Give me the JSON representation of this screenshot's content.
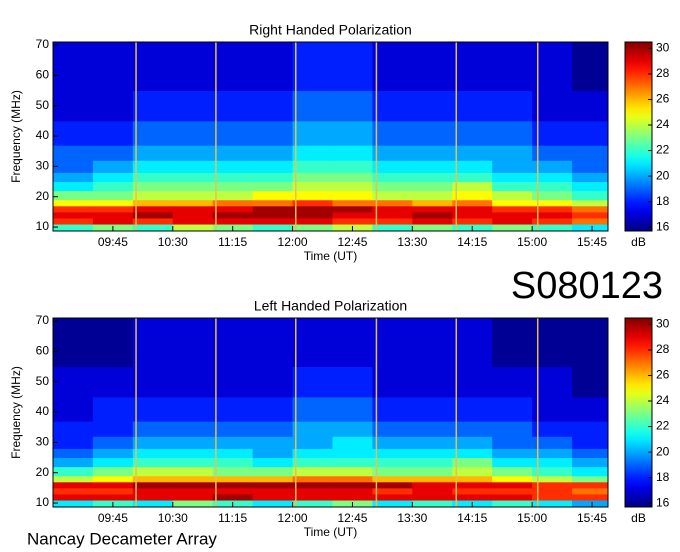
{
  "chart_data": [
    {
      "type": "heatmap",
      "title": "Right Handed Polarization",
      "x_label": "Time (UT)",
      "y_label": "Frequency (MHz)",
      "colorbar_label": "dB",
      "colormap": "jet",
      "xlim": [
        9.0,
        15.95
      ],
      "ylim": [
        8.7,
        71
      ],
      "xticks": [
        {
          "value": 9.75,
          "label": "09:45"
        },
        {
          "value": 10.5,
          "label": "10:30"
        },
        {
          "value": 11.25,
          "label": "11:15"
        },
        {
          "value": 12.0,
          "label": "12:00"
        },
        {
          "value": 12.75,
          "label": "12:45"
        },
        {
          "value": 13.5,
          "label": "13:30"
        },
        {
          "value": 14.25,
          "label": "14:15"
        },
        {
          "value": 15.0,
          "label": "15:00"
        },
        {
          "value": 15.75,
          "label": "15:45"
        }
      ],
      "yticks": [
        10,
        20,
        30,
        40,
        50,
        60,
        70
      ],
      "clim": [
        15.7,
        30.5
      ],
      "cticks": [
        16,
        18,
        20,
        22,
        24,
        26,
        28,
        30
      ],
      "x_edges": [
        9.0,
        9.5,
        10.0,
        10.5,
        11.0,
        11.5,
        12.0,
        12.5,
        13.0,
        13.5,
        14.0,
        14.5,
        15.0,
        15.5,
        15.95
      ],
      "y_edges": [
        8.7,
        11,
        13,
        15,
        17,
        19,
        22,
        25,
        28,
        32,
        37,
        45,
        55,
        71
      ],
      "z": [
        [
          22,
          23,
          22,
          24,
          23,
          22,
          23,
          24,
          22,
          23,
          22,
          23,
          22,
          21
        ],
        [
          28,
          29,
          28,
          29,
          29,
          29,
          29,
          28,
          28,
          29,
          28,
          29,
          28,
          27
        ],
        [
          29,
          29,
          30,
          29,
          30,
          30,
          30,
          29,
          29,
          30,
          29,
          29,
          29,
          28
        ],
        [
          28,
          28,
          29,
          29,
          29,
          30,
          30,
          30,
          29,
          29,
          29,
          28,
          28,
          27
        ],
        [
          25,
          25,
          26,
          26,
          27,
          27,
          28,
          27,
          27,
          26,
          27,
          25,
          25,
          24
        ],
        [
          23,
          23,
          24,
          24,
          24,
          25,
          25,
          25,
          24,
          24,
          25,
          24,
          23,
          22
        ],
        [
          21,
          22,
          23,
          23,
          23,
          23,
          24,
          24,
          23,
          23,
          24,
          22,
          22,
          21
        ],
        [
          20,
          21,
          22,
          22,
          22,
          22,
          23,
          23,
          22,
          22,
          22,
          21,
          21,
          20
        ],
        [
          19,
          20,
          21,
          21,
          21,
          21,
          22,
          22,
          21,
          21,
          21,
          20,
          20,
          19
        ],
        [
          19,
          19,
          20,
          20,
          20,
          20,
          21,
          21,
          20,
          20,
          20,
          20,
          19,
          19
        ],
        [
          18,
          18,
          19,
          19,
          19,
          19,
          20,
          20,
          19,
          19,
          19,
          19,
          18,
          18
        ],
        [
          17,
          17,
          18,
          18,
          18,
          18,
          19,
          19,
          18,
          18,
          18,
          18,
          17,
          17
        ],
        [
          17,
          17,
          17,
          17,
          17,
          17,
          18,
          18,
          17,
          17,
          17,
          17,
          17,
          16
        ]
      ],
      "vlines": [
        10.04,
        11.04,
        12.04,
        13.05,
        14.05,
        15.07
      ],
      "vline_color": "#e8c050"
    },
    {
      "type": "heatmap",
      "title": "Left Handed Polarization",
      "x_label": "Time (UT)",
      "y_label": "Frequency (MHz)",
      "colorbar_label": "dB",
      "colormap": "jet",
      "xlim": [
        9.0,
        15.95
      ],
      "ylim": [
        8.7,
        71
      ],
      "xticks": [
        {
          "value": 9.75,
          "label": "09:45"
        },
        {
          "value": 10.5,
          "label": "10:30"
        },
        {
          "value": 11.25,
          "label": "11:15"
        },
        {
          "value": 12.0,
          "label": "12:00"
        },
        {
          "value": 12.75,
          "label": "12:45"
        },
        {
          "value": 13.5,
          "label": "13:30"
        },
        {
          "value": 14.25,
          "label": "14:15"
        },
        {
          "value": 15.0,
          "label": "15:00"
        },
        {
          "value": 15.75,
          "label": "15:45"
        }
      ],
      "yticks": [
        10,
        20,
        30,
        40,
        50,
        60,
        70
      ],
      "clim": [
        15.7,
        30.5
      ],
      "cticks": [
        16,
        18,
        20,
        22,
        24,
        26,
        28,
        30
      ],
      "x_edges": [
        9.0,
        9.5,
        10.0,
        10.5,
        11.0,
        11.5,
        12.0,
        12.5,
        13.0,
        13.5,
        14.0,
        14.5,
        15.0,
        15.5,
        15.95
      ],
      "y_edges": [
        8.7,
        11,
        13,
        15,
        17,
        19,
        22,
        25,
        28,
        32,
        37,
        45,
        55,
        71
      ],
      "z": [
        [
          21,
          22,
          21,
          23,
          22,
          21,
          22,
          23,
          21,
          22,
          21,
          22,
          21,
          20
        ],
        [
          29,
          29,
          29,
          29,
          30,
          29,
          29,
          29,
          29,
          29,
          29,
          29,
          28,
          28
        ],
        [
          28,
          28,
          29,
          29,
          29,
          29,
          29,
          29,
          28,
          29,
          28,
          28,
          28,
          27
        ],
        [
          29,
          29,
          30,
          30,
          30,
          30,
          30,
          30,
          30,
          29,
          29,
          29,
          28,
          28
        ],
        [
          24,
          25,
          26,
          26,
          26,
          26,
          27,
          27,
          26,
          26,
          26,
          25,
          24,
          23
        ],
        [
          22,
          23,
          24,
          24,
          23,
          23,
          24,
          24,
          23,
          23,
          24,
          23,
          22,
          21
        ],
        [
          20,
          21,
          22,
          22,
          22,
          21,
          22,
          22,
          22,
          22,
          23,
          21,
          21,
          20
        ],
        [
          19,
          20,
          21,
          21,
          21,
          20,
          21,
          21,
          21,
          21,
          21,
          20,
          20,
          19
        ],
        [
          18,
          19,
          20,
          20,
          20,
          20,
          20,
          21,
          20,
          20,
          20,
          19,
          19,
          18
        ],
        [
          18,
          18,
          19,
          19,
          19,
          19,
          20,
          20,
          19,
          19,
          19,
          19,
          18,
          18
        ],
        [
          17,
          18,
          18,
          18,
          18,
          18,
          19,
          19,
          18,
          18,
          18,
          18,
          17,
          17
        ],
        [
          17,
          17,
          17,
          17,
          17,
          17,
          18,
          18,
          17,
          17,
          17,
          17,
          17,
          16
        ],
        [
          16,
          16,
          17,
          17,
          17,
          17,
          17,
          17,
          17,
          17,
          17,
          16,
          16,
          16
        ]
      ],
      "vlines": [
        10.04,
        11.04,
        12.04,
        13.05,
        14.05,
        15.07
      ],
      "vline_color": "#e8c050"
    }
  ],
  "event_id": "S080123",
  "station": "Nancay Decameter Array"
}
